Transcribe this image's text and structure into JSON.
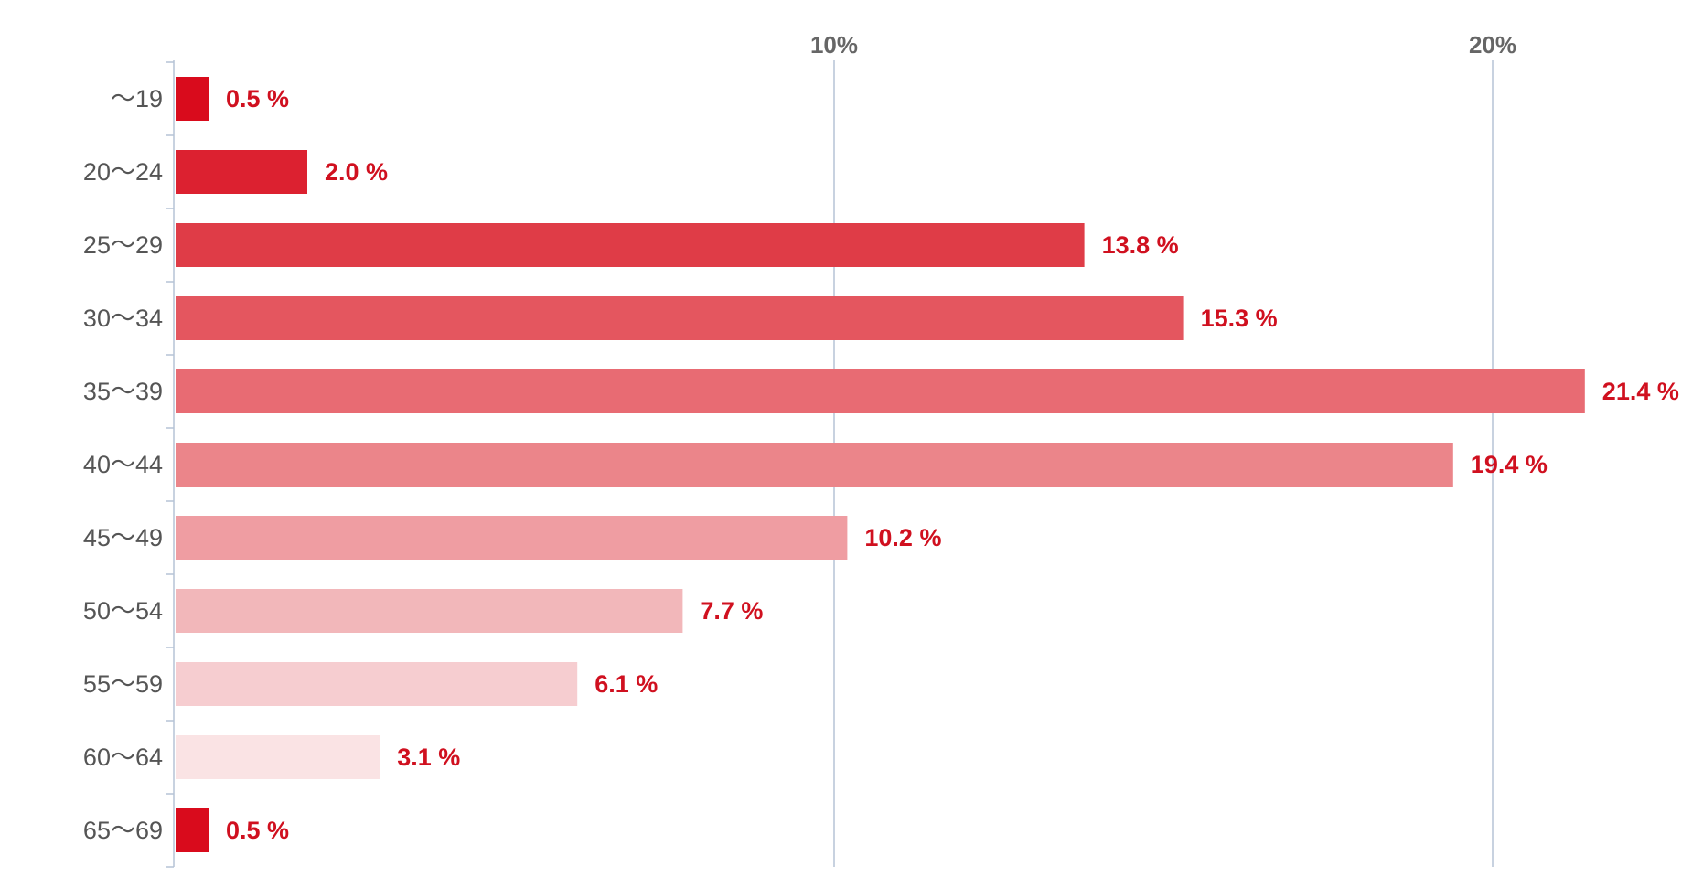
{
  "chart_data": {
    "type": "bar",
    "orientation": "horizontal",
    "categories": [
      "～19",
      "20～24",
      "25～29",
      "30～34",
      "35～39",
      "40～44",
      "45～49",
      "50～54",
      "55～59",
      "60～64",
      "65～69"
    ],
    "values": [
      0.5,
      2.0,
      13.8,
      15.3,
      21.4,
      19.4,
      10.2,
      7.7,
      6.1,
      3.1,
      0.5
    ],
    "value_labels": [
      "0.5 %",
      "2.0 %",
      "13.8 %",
      "15.3 %",
      "21.4 %",
      "19.4 %",
      "10.2 %",
      "7.7 %",
      "6.1 %",
      "3.1 %",
      "0.5 %"
    ],
    "bar_colors": [
      "#d90b1c",
      "#dc2130",
      "#df3c47",
      "#e4565f",
      "#e86b73",
      "#eb858a",
      "#ef9da2",
      "#f2b7ba",
      "#f6cdd0",
      "#fae3e4",
      "#d90b1c"
    ],
    "x_ticks": [
      10,
      20
    ],
    "x_tick_labels": [
      "10%",
      "20%"
    ],
    "xlim": [
      0,
      22
    ],
    "title": "",
    "xlabel": "",
    "ylabel": "",
    "grid": "vertical",
    "legend": "none",
    "colors": {
      "value_text": "#d0101f",
      "category_text": "#555555",
      "tick_text": "#666666",
      "axis": "#b5c3d6",
      "grid": "#b5c3d6"
    }
  }
}
